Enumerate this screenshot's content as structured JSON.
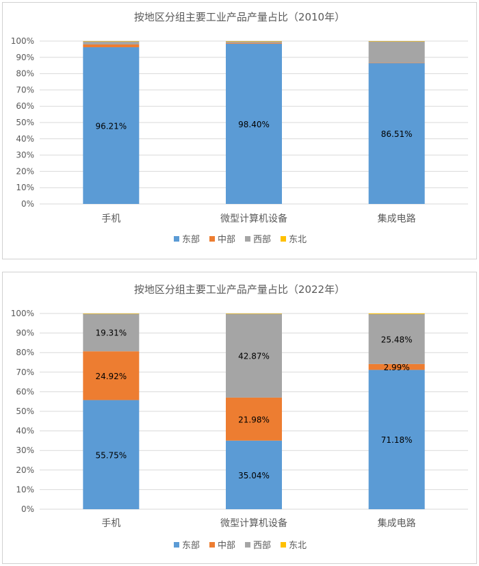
{
  "chart_data": [
    {
      "type": "bar",
      "stacked": true,
      "title": "按地区分组主要工业产品产量占比（2010年）",
      "categories": [
        "手机",
        "微型计算机设备",
        "集成电路"
      ],
      "ylim": [
        0,
        100
      ],
      "yticks": [
        "0%",
        "10%",
        "20%",
        "30%",
        "40%",
        "50%",
        "60%",
        "70%",
        "80%",
        "90%",
        "100%"
      ],
      "grid": true,
      "legend": "bottom",
      "series": [
        {
          "name": "东部",
          "color": "#5B9BD5",
          "values": [
            96.21,
            98.4,
            86.51
          ],
          "labels": [
            "96.21%",
            "98.40%",
            "86.51%"
          ]
        },
        {
          "name": "中部",
          "color": "#ED7D31",
          "values": [
            1.7,
            0.5,
            0.2
          ],
          "labels": [
            "",
            "",
            ""
          ]
        },
        {
          "name": "西部",
          "color": "#A5A5A5",
          "values": [
            1.9,
            1.0,
            13.2
          ],
          "labels": [
            "",
            "",
            ""
          ]
        },
        {
          "name": "东北",
          "color": "#FFC000",
          "values": [
            0.2,
            0.1,
            0.1
          ],
          "labels": [
            "",
            "",
            ""
          ]
        }
      ]
    },
    {
      "type": "bar",
      "stacked": true,
      "title": "按地区分组主要工业产品产量占比（2022年）",
      "categories": [
        "手机",
        "微型计算机设备",
        "集成电路"
      ],
      "ylim": [
        0,
        100
      ],
      "yticks": [
        "0%",
        "10%",
        "20%",
        "30%",
        "40%",
        "50%",
        "60%",
        "70%",
        "80%",
        "90%",
        "100%"
      ],
      "grid": true,
      "legend": "bottom",
      "series": [
        {
          "name": "东部",
          "color": "#5B9BD5",
          "values": [
            55.75,
            35.04,
            71.18
          ],
          "labels": [
            "55.75%",
            "35.04%",
            "71.18%"
          ]
        },
        {
          "name": "中部",
          "color": "#ED7D31",
          "values": [
            24.92,
            21.98,
            2.99
          ],
          "labels": [
            "24.92%",
            "21.98%",
            "2.99%"
          ]
        },
        {
          "name": "西部",
          "color": "#A5A5A5",
          "values": [
            19.31,
            42.87,
            25.48
          ],
          "labels": [
            "19.31%",
            "42.87%",
            "25.48%"
          ]
        },
        {
          "name": "东北",
          "color": "#FFC000",
          "values": [
            0.02,
            0.11,
            0.35
          ],
          "labels": [
            "",
            "",
            ""
          ]
        }
      ]
    }
  ]
}
